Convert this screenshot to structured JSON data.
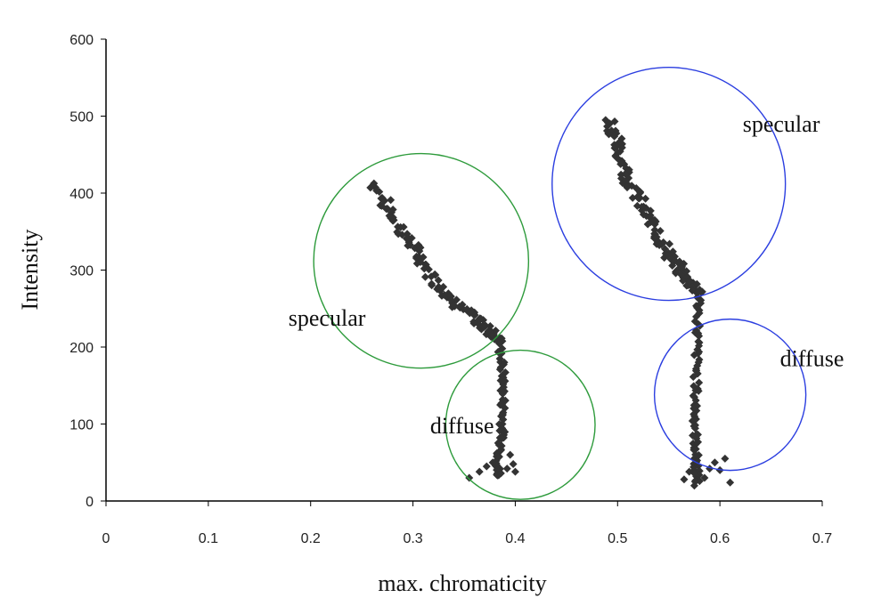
{
  "chart_data": {
    "type": "scatter",
    "title": "",
    "xlabel": "max. chromaticity",
    "ylabel": "Intensity",
    "xlim": [
      0,
      0.7
    ],
    "ylim": [
      0,
      600
    ],
    "xticks": [
      "0",
      "0.1",
      "0.2",
      "0.3",
      "0.4",
      "0.5",
      "0.6",
      "0.7"
    ],
    "yticks": [
      "0",
      "100",
      "200",
      "300",
      "400",
      "500",
      "600"
    ],
    "grid": false,
    "legend": "none",
    "marker": "diamond",
    "marker_color": "#333333",
    "clusters": [
      {
        "specular_path": [
          [
            0.262,
            412
          ],
          [
            0.28,
            370
          ],
          [
            0.3,
            330
          ],
          [
            0.32,
            290
          ],
          [
            0.34,
            260
          ],
          [
            0.36,
            237
          ],
          [
            0.375,
            222
          ],
          [
            0.385,
            210
          ]
        ],
        "diffuse_path": [
          [
            0.385,
            205
          ],
          [
            0.388,
            160
          ],
          [
            0.388,
            120
          ],
          [
            0.387,
            85
          ],
          [
            0.384,
            55
          ],
          [
            0.382,
            30
          ]
        ],
        "diffuse_spread": [
          [
            0.355,
            30
          ],
          [
            0.365,
            38
          ],
          [
            0.372,
            45
          ],
          [
            0.378,
            50
          ],
          [
            0.386,
            36
          ],
          [
            0.392,
            42
          ],
          [
            0.398,
            48
          ],
          [
            0.4,
            38
          ],
          [
            0.395,
            60
          ]
        ]
      },
      {
        "specular_path": [
          [
            0.493,
            495
          ],
          [
            0.5,
            460
          ],
          [
            0.51,
            420
          ],
          [
            0.525,
            380
          ],
          [
            0.54,
            345
          ],
          [
            0.555,
            310
          ],
          [
            0.567,
            290
          ],
          [
            0.58,
            272
          ]
        ],
        "diffuse_path": [
          [
            0.58,
            270
          ],
          [
            0.578,
            220
          ],
          [
            0.577,
            170
          ],
          [
            0.576,
            120
          ],
          [
            0.576,
            80
          ],
          [
            0.577,
            45
          ],
          [
            0.578,
            22
          ]
        ],
        "diffuse_spread": [
          [
            0.565,
            28
          ],
          [
            0.57,
            38
          ],
          [
            0.575,
            20
          ],
          [
            0.585,
            30
          ],
          [
            0.59,
            42
          ],
          [
            0.595,
            50
          ],
          [
            0.6,
            40
          ],
          [
            0.61,
            24
          ],
          [
            0.605,
            55
          ]
        ]
      }
    ],
    "annotations": [
      {
        "text": "specular",
        "x": 0.216,
        "y": 228,
        "circle": {
          "cx": 0.308,
          "cy": 312,
          "r": 0.105,
          "color": "#2e9b3c"
        }
      },
      {
        "text": "diffuse",
        "x": 0.348,
        "y": 88,
        "circle": {
          "cx": 0.405,
          "cy": 99,
          "r": 0.073,
          "color": "#2e9b3c"
        }
      },
      {
        "text": "specular",
        "x": 0.66,
        "y": 480,
        "circle": {
          "cx": 0.55,
          "cy": 412,
          "r": 0.114,
          "color": "#2b3ee0"
        }
      },
      {
        "text": "diffuse",
        "x": 0.69,
        "y": 175,
        "circle": {
          "cx": 0.61,
          "cy": 138,
          "r": 0.074,
          "color": "#2b3ee0"
        }
      }
    ]
  }
}
